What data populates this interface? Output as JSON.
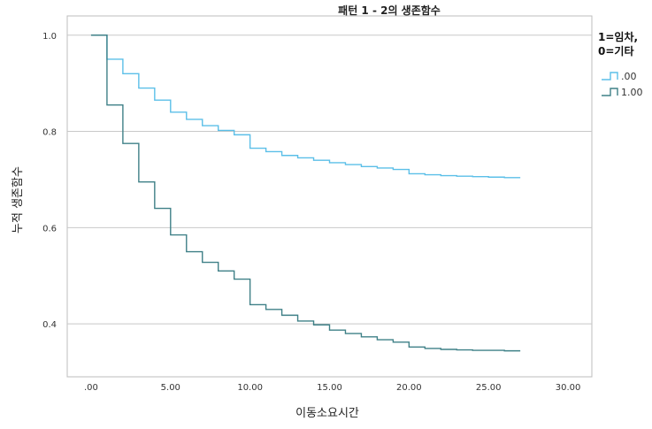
{
  "chart_data": {
    "type": "line",
    "title": "패턴 1 - 2의 생존함수",
    "xlabel": "이동소요시간",
    "ylabel": "누적 생존함수",
    "xlim": [
      -1.5,
      31.5
    ],
    "ylim": [
      0.29,
      1.04
    ],
    "x_ticks": [
      0,
      5,
      10,
      15,
      20,
      25,
      30
    ],
    "x_tick_labels": [
      ".00",
      "5.00",
      "10.00",
      "15.00",
      "20.00",
      "25.00",
      "30.00"
    ],
    "y_ticks": [
      0.4,
      0.6,
      0.8,
      1.0
    ],
    "y_tick_labels": [
      "0.4",
      "0.6",
      "0.8",
      "1.0"
    ],
    "grid": "horizontal",
    "step": true,
    "legend": {
      "title_line1": "1=임차,",
      "title_line2": "0=기타",
      "position": "right"
    },
    "series": [
      {
        "name": ".00",
        "color": "#5bbfe8",
        "x": [
          0,
          1,
          2,
          3,
          4,
          5,
          6,
          7,
          8,
          9,
          10,
          11,
          12,
          13,
          14,
          15,
          16,
          17,
          18,
          19,
          20,
          21,
          22,
          23,
          24,
          25,
          26,
          27
        ],
        "y": [
          1.0,
          0.95,
          0.92,
          0.89,
          0.865,
          0.84,
          0.825,
          0.812,
          0.802,
          0.793,
          0.765,
          0.758,
          0.75,
          0.745,
          0.74,
          0.735,
          0.731,
          0.727,
          0.724,
          0.721,
          0.712,
          0.71,
          0.708,
          0.707,
          0.706,
          0.705,
          0.704,
          0.704
        ]
      },
      {
        "name": "1.00",
        "color": "#3f8087",
        "x": [
          0,
          1,
          2,
          3,
          4,
          5,
          6,
          7,
          8,
          9,
          10,
          11,
          12,
          13,
          14,
          15,
          16,
          17,
          18,
          19,
          20,
          21,
          22,
          23,
          24,
          25,
          26,
          27
        ],
        "y": [
          1.0,
          0.855,
          0.775,
          0.695,
          0.64,
          0.585,
          0.55,
          0.528,
          0.51,
          0.493,
          0.44,
          0.43,
          0.418,
          0.406,
          0.398,
          0.387,
          0.38,
          0.373,
          0.367,
          0.362,
          0.352,
          0.349,
          0.347,
          0.346,
          0.345,
          0.345,
          0.344,
          0.344
        ]
      }
    ]
  }
}
